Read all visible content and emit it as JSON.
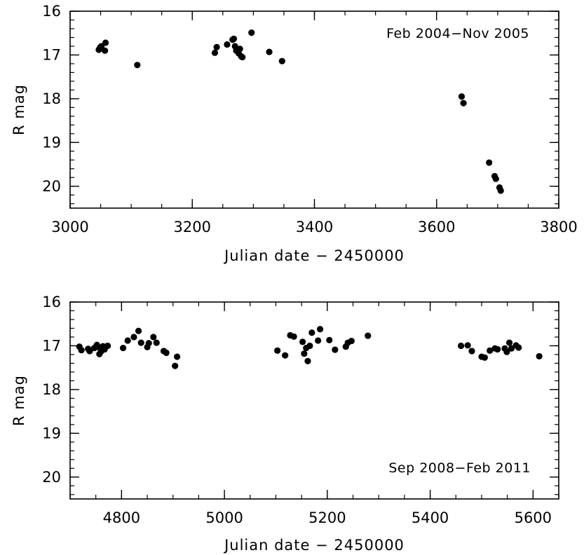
{
  "chart_data": [
    {
      "type": "scatter",
      "annotation": "Feb 2004−Nov 2005",
      "xlabel": "Julian date − 2450000",
      "ylabel": "R mag",
      "xlim": [
        3000,
        3800
      ],
      "ylim": [
        20.5,
        16
      ],
      "y_inverted": true,
      "xticks": [
        3000,
        3200,
        3400,
        3600,
        3800
      ],
      "yticks": [
        16,
        17,
        18,
        19,
        20
      ],
      "grid": false,
      "marker_color": "#000000",
      "points": [
        {
          "x": 3047,
          "y": 16.88
        },
        {
          "x": 3049,
          "y": 16.83
        },
        {
          "x": 3051,
          "y": 16.8
        },
        {
          "x": 3057,
          "y": 16.9
        },
        {
          "x": 3058,
          "y": 16.72
        },
        {
          "x": 3110,
          "y": 17.23
        },
        {
          "x": 3237,
          "y": 16.95
        },
        {
          "x": 3240,
          "y": 16.82
        },
        {
          "x": 3257,
          "y": 16.76
        },
        {
          "x": 3266,
          "y": 16.65
        },
        {
          "x": 3268,
          "y": 16.63
        },
        {
          "x": 3270,
          "y": 16.8
        },
        {
          "x": 3272,
          "y": 16.9
        },
        {
          "x": 3276,
          "y": 16.96
        },
        {
          "x": 3278,
          "y": 16.86
        },
        {
          "x": 3280,
          "y": 17.03
        },
        {
          "x": 3282,
          "y": 17.05
        },
        {
          "x": 3297,
          "y": 16.49
        },
        {
          "x": 3326,
          "y": 16.93
        },
        {
          "x": 3347,
          "y": 17.14
        },
        {
          "x": 3641,
          "y": 17.95
        },
        {
          "x": 3644,
          "y": 18.1
        },
        {
          "x": 3686,
          "y": 19.46
        },
        {
          "x": 3695,
          "y": 19.77
        },
        {
          "x": 3697,
          "y": 19.83
        },
        {
          "x": 3703,
          "y": 20.03
        },
        {
          "x": 3705,
          "y": 20.1
        }
      ]
    },
    {
      "type": "scatter",
      "annotation": "Sep 2008−Feb 2011",
      "xlabel": "Julian date − 2450000",
      "ylabel": "R mag",
      "xlim": [
        4700,
        5650
      ],
      "ylim": [
        20.5,
        16
      ],
      "y_inverted": true,
      "xticks": [
        4800,
        5000,
        5200,
        5400,
        5600
      ],
      "yticks": [
        16,
        17,
        18,
        19,
        20
      ],
      "grid": false,
      "marker_color": "#000000",
      "points": [
        {
          "x": 4718,
          "y": 17.02
        },
        {
          "x": 4722,
          "y": 17.1
        },
        {
          "x": 4735,
          "y": 17.07
        },
        {
          "x": 4738,
          "y": 17.12
        },
        {
          "x": 4747,
          "y": 17.05
        },
        {
          "x": 4752,
          "y": 16.98
        },
        {
          "x": 4755,
          "y": 17.03
        },
        {
          "x": 4757,
          "y": 17.19
        },
        {
          "x": 4760,
          "y": 17.13
        },
        {
          "x": 4764,
          "y": 17.01
        },
        {
          "x": 4767,
          "y": 17.08
        },
        {
          "x": 4773,
          "y": 17.0
        },
        {
          "x": 4803,
          "y": 17.05
        },
        {
          "x": 4812,
          "y": 16.88
        },
        {
          "x": 4824,
          "y": 16.8
        },
        {
          "x": 4833,
          "y": 16.66
        },
        {
          "x": 4838,
          "y": 16.93
        },
        {
          "x": 4850,
          "y": 17.03
        },
        {
          "x": 4853,
          "y": 16.94
        },
        {
          "x": 4862,
          "y": 16.8
        },
        {
          "x": 4868,
          "y": 16.93
        },
        {
          "x": 4882,
          "y": 17.12
        },
        {
          "x": 4887,
          "y": 17.16
        },
        {
          "x": 4904,
          "y": 17.46
        },
        {
          "x": 4908,
          "y": 17.25
        },
        {
          "x": 5103,
          "y": 17.11
        },
        {
          "x": 5118,
          "y": 17.22
        },
        {
          "x": 5128,
          "y": 16.76
        },
        {
          "x": 5135,
          "y": 16.79
        },
        {
          "x": 5152,
          "y": 16.91
        },
        {
          "x": 5155,
          "y": 17.18
        },
        {
          "x": 5159,
          "y": 17.05
        },
        {
          "x": 5162,
          "y": 17.35
        },
        {
          "x": 5166,
          "y": 17.0
        },
        {
          "x": 5170,
          "y": 16.7
        },
        {
          "x": 5182,
          "y": 16.88
        },
        {
          "x": 5186,
          "y": 16.62
        },
        {
          "x": 5204,
          "y": 16.87
        },
        {
          "x": 5215,
          "y": 17.09
        },
        {
          "x": 5236,
          "y": 17.02
        },
        {
          "x": 5240,
          "y": 16.93
        },
        {
          "x": 5247,
          "y": 16.89
        },
        {
          "x": 5279,
          "y": 16.77
        },
        {
          "x": 5460,
          "y": 17.0
        },
        {
          "x": 5473,
          "y": 16.99
        },
        {
          "x": 5481,
          "y": 17.12
        },
        {
          "x": 5500,
          "y": 17.25
        },
        {
          "x": 5506,
          "y": 17.27
        },
        {
          "x": 5516,
          "y": 17.11
        },
        {
          "x": 5526,
          "y": 17.06
        },
        {
          "x": 5531,
          "y": 17.08
        },
        {
          "x": 5545,
          "y": 17.06
        },
        {
          "x": 5549,
          "y": 17.14
        },
        {
          "x": 5554,
          "y": 16.93
        },
        {
          "x": 5558,
          "y": 17.06
        },
        {
          "x": 5567,
          "y": 16.99
        },
        {
          "x": 5572,
          "y": 17.04
        },
        {
          "x": 5612,
          "y": 17.24
        }
      ]
    }
  ]
}
